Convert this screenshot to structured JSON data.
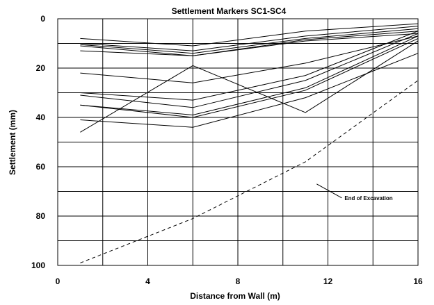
{
  "chart_data": {
    "type": "line",
    "title": "Settlement Markers SC1-SC4",
    "xlabel": "Distance from Wall (m)",
    "ylabel": "Settlement (mm)",
    "xlim": [
      0,
      16
    ],
    "ylim": [
      100,
      0
    ],
    "y_inverted": true,
    "grid": true,
    "x_ticks": [
      0,
      4,
      8,
      12,
      16
    ],
    "y_ticks": [
      0,
      20,
      40,
      60,
      80,
      100
    ],
    "x_minor_gridlines": [
      2,
      6,
      10,
      14
    ],
    "y_minor_gridlines": [
      10,
      30,
      50,
      70,
      90
    ],
    "x": [
      1,
      6,
      11,
      16
    ],
    "series": [
      {
        "values": [
          8,
          11,
          5,
          2
        ]
      },
      {
        "values": [
          10,
          13,
          7,
          3
        ]
      },
      {
        "values": [
          10.5,
          14,
          8,
          4
        ]
      },
      {
        "values": [
          11,
          15,
          8.5,
          5
        ]
      },
      {
        "values": [
          13,
          15,
          9,
          6
        ]
      },
      {
        "values": [
          22,
          26,
          18,
          7
        ]
      },
      {
        "values": [
          30,
          33,
          23,
          5
        ]
      },
      {
        "values": [
          31,
          36,
          25,
          6
        ]
      },
      {
        "values": [
          35,
          39,
          28,
          7
        ]
      },
      {
        "values": [
          35,
          40,
          29,
          8
        ]
      },
      {
        "values": [
          41,
          44,
          32,
          14
        ]
      },
      {
        "values": [
          46,
          19,
          38,
          9
        ]
      },
      {
        "values": [
          99,
          81,
          58,
          25
        ],
        "style": "dashed"
      }
    ],
    "annotations": [
      {
        "text": "End of Excavation",
        "points_to": [
          11.5,
          67
        ]
      }
    ]
  }
}
